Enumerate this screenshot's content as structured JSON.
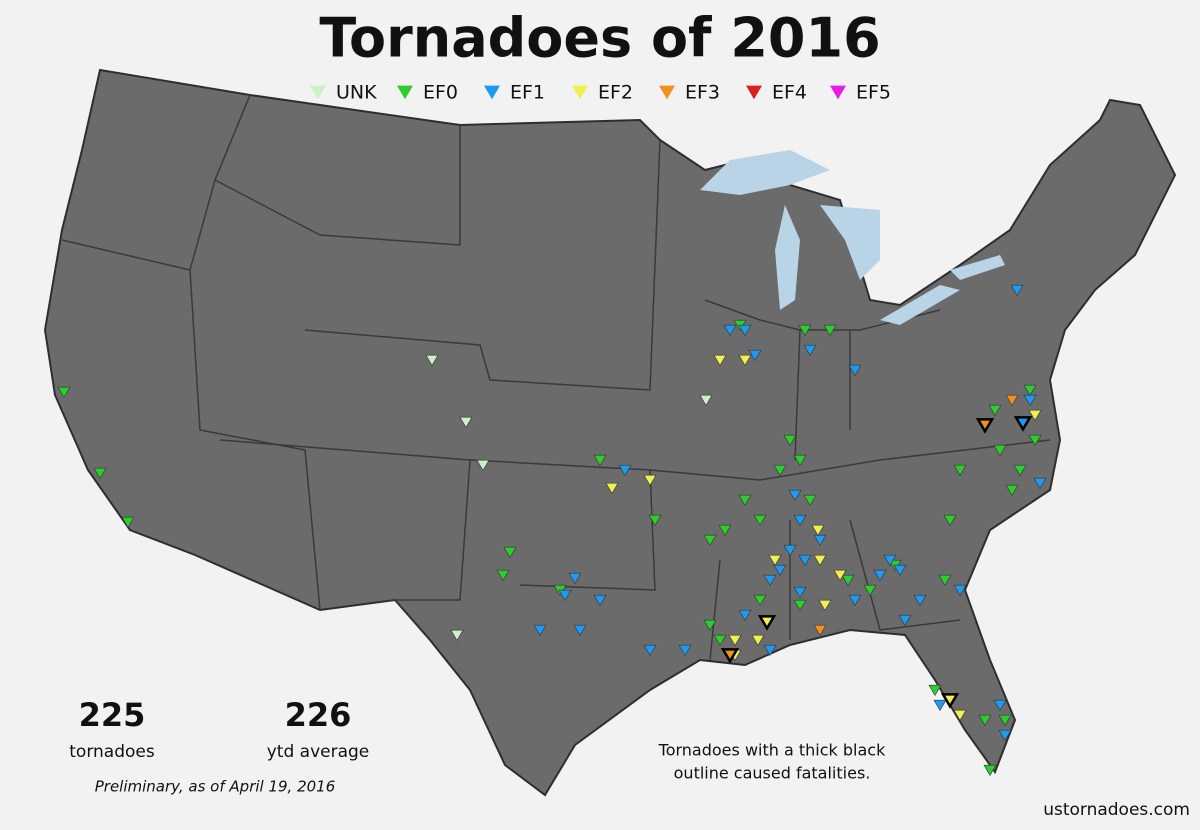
{
  "title": "Tornadoes of 2016",
  "legend": [
    {
      "label": "UNK",
      "color": "#ccf0c8"
    },
    {
      "label": "EF0",
      "color": "#2ecc2e"
    },
    {
      "label": "EF1",
      "color": "#1e9bf0"
    },
    {
      "label": "EF2",
      "color": "#f0f050"
    },
    {
      "label": "EF3",
      "color": "#f0901e"
    },
    {
      "label": "EF4",
      "color": "#dc1e1e"
    },
    {
      "label": "EF5",
      "color": "#e61ee6"
    }
  ],
  "stats": [
    {
      "value": 225,
      "label": "tornadoes"
    },
    {
      "value": 226,
      "label": "ytd average"
    }
  ],
  "note": "Preliminary, as of April 19, 2016",
  "annotation": [
    "Tornadoes with a thick black",
    "outline caused fatalities."
  ],
  "source": "ustornadoes.com"
}
